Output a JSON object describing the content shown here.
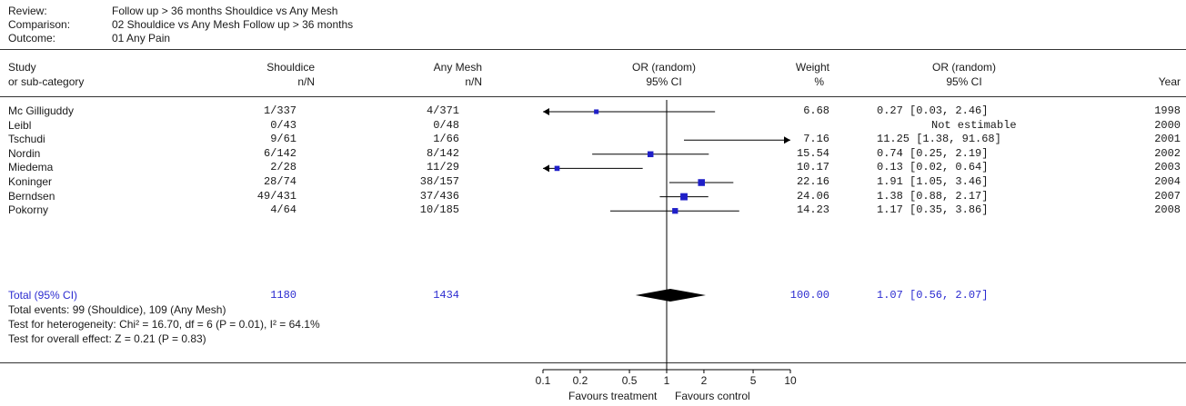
{
  "header": {
    "review_label": "Review:",
    "review_value": "Follow up > 36 months Shouldice vs Any Mesh",
    "comparison_label": "Comparison:",
    "comparison_value": "02 Shouldice vs Any Mesh Follow up > 36 months",
    "outcome_label": "Outcome:",
    "outcome_value": "01 Any Pain"
  },
  "columns": {
    "study_1": "Study",
    "study_2": "or sub-category",
    "group1_1": "Shouldice",
    "group1_2": "n/N",
    "group2_1": "Any Mesh",
    "group2_2": "n/N",
    "plot_1": "OR (random)",
    "plot_2": "95% CI",
    "weight_1": "Weight",
    "weight_2": "%",
    "or_1": "OR (random)",
    "or_2": "95% CI",
    "year": "Year"
  },
  "total": {
    "label": "Total (95% CI)",
    "shouldice": "1180",
    "anymesh": "1434",
    "weight": "100.00",
    "or_text": "1.07 [0.56, 2.07]"
  },
  "footer": {
    "events": "Total events: 99 (Shouldice), 109 (Any Mesh)",
    "heterogeneity": "Test for heterogeneity: Chi² = 16.70, df = 6 (P = 0.01), I² = 64.1%",
    "overall": "Test for overall effect: Z = 0.21 (P = 0.83)"
  },
  "axis": {
    "ticks": [
      "0.1",
      "0.2",
      "0.5",
      "1",
      "2",
      "5",
      "10"
    ],
    "left_label": "Favours treatment",
    "right_label": "Favours control"
  },
  "colors": {
    "marker": "#1f1fc8",
    "diamond": "#000000",
    "total_text": "#2b2bd0"
  },
  "chart_data": {
    "type": "forest",
    "scale": "log",
    "xlim": [
      0.1,
      10
    ],
    "null_line": 1,
    "studies": [
      {
        "study": "Mc Gilliguddy",
        "shouldice": "1/337",
        "anymesh": "4/371",
        "weight": "6.68",
        "or_text": "0.27 [0.03, 2.46]",
        "year": "1998",
        "or": 0.27,
        "lo": 0.03,
        "hi": 2.46
      },
      {
        "study": "Leibl",
        "shouldice": "0/43",
        "anymesh": "0/48",
        "weight": "",
        "or_text": "Not estimable",
        "year": "2000",
        "or": null,
        "lo": null,
        "hi": null
      },
      {
        "study": "Tschudi",
        "shouldice": "9/61",
        "anymesh": "1/66",
        "weight": "7.16",
        "or_text": "11.25 [1.38, 91.68]",
        "year": "2001",
        "or": 11.25,
        "lo": 1.38,
        "hi": 91.68
      },
      {
        "study": "Nordin",
        "shouldice": "6/142",
        "anymesh": "8/142",
        "weight": "15.54",
        "or_text": "0.74 [0.25, 2.19]",
        "year": "2002",
        "or": 0.74,
        "lo": 0.25,
        "hi": 2.19
      },
      {
        "study": "Miedema",
        "shouldice": "2/28",
        "anymesh": "11/29",
        "weight": "10.17",
        "or_text": "0.13 [0.02, 0.64]",
        "year": "2003",
        "or": 0.13,
        "lo": 0.02,
        "hi": 0.64
      },
      {
        "study": "Koninger",
        "shouldice": "28/74",
        "anymesh": "38/157",
        "weight": "22.16",
        "or_text": "1.91 [1.05, 3.46]",
        "year": "2004",
        "or": 1.91,
        "lo": 1.05,
        "hi": 3.46
      },
      {
        "study": "Berndsen",
        "shouldice": "49/431",
        "anymesh": "37/436",
        "weight": "24.06",
        "or_text": "1.38 [0.88, 2.17]",
        "year": "2007",
        "or": 1.38,
        "lo": 0.88,
        "hi": 2.17
      },
      {
        "study": "Pokorny",
        "shouldice": "4/64",
        "anymesh": "10/185",
        "weight": "14.23",
        "or_text": "1.17 [0.35, 3.86]",
        "year": "2008",
        "or": 1.17,
        "lo": 0.35,
        "hi": 3.86
      }
    ],
    "pooled": {
      "or": 1.07,
      "lo": 0.56,
      "hi": 2.07
    }
  }
}
